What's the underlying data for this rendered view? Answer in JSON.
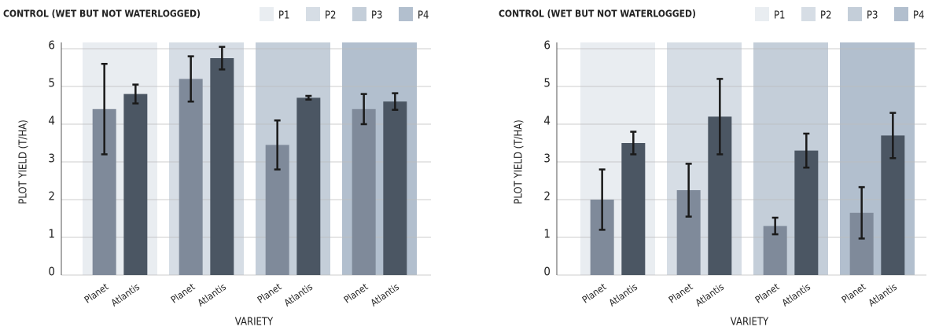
{
  "chart_data": [
    {
      "type": "bar",
      "title": "CONTROL (WET BUT NOT WATERLOGGED)",
      "ylabel": "PLOT YIELD (T/HA)",
      "xlabel": "VARIETY",
      "groups": [
        {
          "name": "P1",
          "color": "#e9edf1"
        },
        {
          "name": "P2",
          "color": "#d6dde5"
        },
        {
          "name": "P3",
          "color": "#c4ced9"
        },
        {
          "name": "P4",
          "color": "#b2bfce"
        }
      ],
      "series": [
        {
          "name": "Planet",
          "color": "#7f8a9a",
          "values": [
            4.4,
            5.2,
            3.45,
            4.4
          ],
          "errors": [
            1.2,
            0.6,
            0.65,
            0.4
          ]
        },
        {
          "name": "Atlantis",
          "color": "#4b5663",
          "values": [
            4.8,
            5.75,
            4.7,
            4.6
          ],
          "errors": [
            0.25,
            0.3,
            0.05,
            0.22
          ]
        }
      ],
      "ylim": [
        0,
        6
      ],
      "yticks": [
        0,
        1,
        2,
        3,
        4,
        5,
        6
      ],
      "grid": true
    },
    {
      "type": "bar",
      "title": "CONTROL (WET BUT NOT WATERLOGGED)",
      "ylabel": "PLOT YIELD (T/HA)",
      "xlabel": "VARIETY",
      "groups": [
        {
          "name": "P1",
          "color": "#e9edf1"
        },
        {
          "name": "P2",
          "color": "#d6dde5"
        },
        {
          "name": "P3",
          "color": "#c4ced9"
        },
        {
          "name": "P4",
          "color": "#b2bfce"
        }
      ],
      "series": [
        {
          "name": "Planet",
          "color": "#7f8a9a",
          "values": [
            2.0,
            2.25,
            1.3,
            1.65
          ],
          "errors": [
            0.8,
            0.7,
            0.22,
            0.68
          ]
        },
        {
          "name": "Atlantis",
          "color": "#4b5663",
          "values": [
            3.5,
            4.2,
            3.3,
            3.7
          ],
          "errors": [
            0.3,
            1.0,
            0.45,
            0.6
          ]
        }
      ],
      "ylim": [
        0,
        6
      ],
      "yticks": [
        0,
        1,
        2,
        3,
        4,
        5,
        6
      ],
      "grid": true
    }
  ]
}
